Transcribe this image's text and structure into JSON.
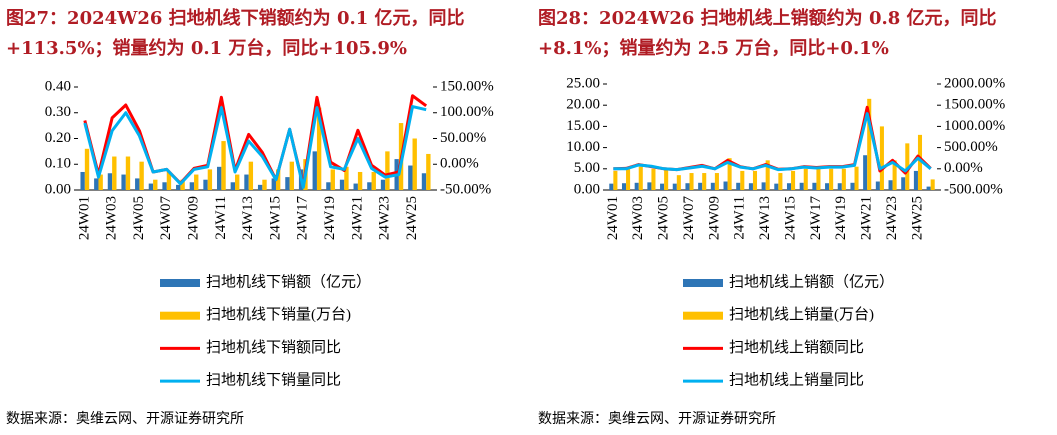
{
  "chart_data": [
    {
      "type": "combo",
      "title": "图27：2024W26 扫地机线下销额约为 0.1 亿元，同比+113.5%；销量约为 0.1 万台，同比+105.9%",
      "source": "数据来源：奥维云网、开源证券研究所",
      "categories": [
        "24W01",
        null,
        "24W03",
        null,
        "24W05",
        null,
        "24W07",
        null,
        "24W09",
        null,
        "24W11",
        null,
        "24W13",
        null,
        "24W15",
        null,
        "24W17",
        null,
        "24W19",
        null,
        "24W21",
        null,
        "24W23",
        null,
        "24W25",
        null
      ],
      "ylim": [
        0,
        0.4
      ],
      "yticks": [
        {
          "value": 0,
          "label": "0.00"
        },
        {
          "value": 0.1,
          "label": "0.10"
        },
        {
          "value": 0.2,
          "label": "0.20"
        },
        {
          "value": 0.3,
          "label": "0.30"
        },
        {
          "value": 0.4,
          "label": "0.40"
        }
      ],
      "y2lim": [
        -50,
        150
      ],
      "y2ticks": [
        {
          "value": -50,
          "label": "-50.00%"
        },
        {
          "value": 0,
          "label": "0.00%"
        },
        {
          "value": 50,
          "label": "50.00%"
        },
        {
          "value": 100,
          "label": "100.00%"
        },
        {
          "value": 150,
          "label": "150.00%"
        }
      ],
      "series": [
        {
          "name": "扫地机线下销额（亿元）",
          "type": "bar",
          "color": "#2e75b6",
          "values": [
            0.07,
            0.045,
            0.065,
            0.06,
            0.045,
            0.025,
            0.03,
            0.02,
            0.03,
            0.04,
            0.09,
            0.03,
            0.06,
            0.02,
            0.045,
            0.05,
            0.08,
            0.15,
            0.03,
            0.04,
            0.025,
            0.03,
            0.04,
            0.12,
            0.095,
            0.065
          ]
        },
        {
          "name": "扫地机线下销量(万台)",
          "type": "bar",
          "color": "#ffc000",
          "values": [
            0.16,
            0.06,
            0.13,
            0.13,
            0.11,
            0.04,
            0.07,
            0.04,
            0.06,
            0.08,
            0.19,
            0.06,
            0.11,
            0.04,
            0.08,
            0.11,
            0.12,
            0.32,
            0.08,
            0.09,
            0.07,
            0.07,
            0.15,
            0.26,
            0.2,
            0.14
          ]
        },
        {
          "name": "扫地机线下销额同比",
          "type": "line",
          "axis": "y2",
          "color": "#ff0000",
          "values": [
            85,
            -20,
            90,
            115,
            65,
            -15,
            -10,
            -37,
            -8,
            -2,
            130,
            -12,
            58,
            23,
            -30,
            68,
            -42,
            130,
            4,
            -12,
            66,
            -2,
            -21,
            -15,
            133,
            113.5
          ]
        },
        {
          "name": "扫地机线下销量同比",
          "type": "line",
          "axis": "y2",
          "color": "#00b0f0",
          "values": [
            80,
            -25,
            65,
            100,
            55,
            -15,
            -10,
            -38,
            -10,
            -5,
            110,
            -15,
            45,
            15,
            -30,
            68,
            -45,
            110,
            -5,
            -10,
            50,
            -8,
            -25,
            -20,
            112,
            105.9
          ]
        }
      ]
    },
    {
      "type": "combo",
      "title": "图28：2024W26 扫地机线上销额约为 0.8 亿元，同比+8.1%；销量约为 2.5 万台，同比+0.1%",
      "source": "数据来源：奥维云网、开源证券研究所",
      "categories": [
        "24W01",
        null,
        "24W03",
        null,
        "24W05",
        null,
        "24W07",
        null,
        "24W09",
        null,
        "24W11",
        null,
        "24W13",
        null,
        "24W15",
        null,
        "24W17",
        null,
        "24W19",
        null,
        "24W21",
        null,
        "24W23",
        null,
        "24W25",
        null
      ],
      "ylim": [
        0,
        25
      ],
      "yticks": [
        {
          "value": 0,
          "label": "0.00"
        },
        {
          "value": 5,
          "label": "5.00"
        },
        {
          "value": 10,
          "label": "10.00"
        },
        {
          "value": 15,
          "label": "15.00"
        },
        {
          "value": 20,
          "label": "20.00"
        },
        {
          "value": 25,
          "label": "25.00"
        }
      ],
      "y2lim": [
        -500,
        2000
      ],
      "y2ticks": [
        {
          "value": -500,
          "label": "-500.00%"
        },
        {
          "value": 0,
          "label": "0.00%"
        },
        {
          "value": 500,
          "label": "500.00%"
        },
        {
          "value": 1000,
          "label": "1000.00%"
        },
        {
          "value": 1500,
          "label": "1500.00%"
        },
        {
          "value": 2000,
          "label": "2000.00%"
        }
      ],
      "series": [
        {
          "name": "扫地机线上销额（亿元）",
          "type": "bar",
          "color": "#2e75b6",
          "values": [
            1.5,
            1.6,
            1.7,
            1.8,
            1.5,
            1.5,
            1.6,
            1.7,
            1.7,
            2.0,
            1.7,
            1.6,
            1.8,
            1.5,
            1.6,
            1.7,
            1.7,
            1.6,
            1.6,
            1.7,
            8.2,
            2.0,
            2.3,
            3.0,
            4.5,
            0.8
          ]
        },
        {
          "name": "扫地机线上销量(万台)",
          "type": "bar",
          "color": "#ffc000",
          "values": [
            4.5,
            5.0,
            5.5,
            5.0,
            5.0,
            3.5,
            4.0,
            4.0,
            4.0,
            7.5,
            4.5,
            4.5,
            7.0,
            4.0,
            4.5,
            5.0,
            5.0,
            5.0,
            5.0,
            5.5,
            21.5,
            15.0,
            7.0,
            11.0,
            13.0,
            2.5
          ]
        },
        {
          "name": "扫地机线上销额同比",
          "type": "line",
          "axis": "y2",
          "color": "#ff0000",
          "values": [
            0,
            10,
            100,
            50,
            0,
            -20,
            30,
            80,
            0,
            200,
            50,
            0,
            100,
            -10,
            0,
            50,
            30,
            50,
            50,
            100,
            1450,
            -50,
            200,
            -100,
            300,
            8.1
          ]
        },
        {
          "name": "扫地机线上销量同比",
          "type": "line",
          "axis": "y2",
          "color": "#00b0f0",
          "values": [
            0,
            0,
            90,
            60,
            0,
            -20,
            20,
            60,
            0,
            150,
            40,
            0,
            80,
            -20,
            0,
            40,
            20,
            40,
            40,
            80,
            1300,
            0,
            150,
            -50,
            250,
            0.1
          ]
        }
      ]
    }
  ]
}
